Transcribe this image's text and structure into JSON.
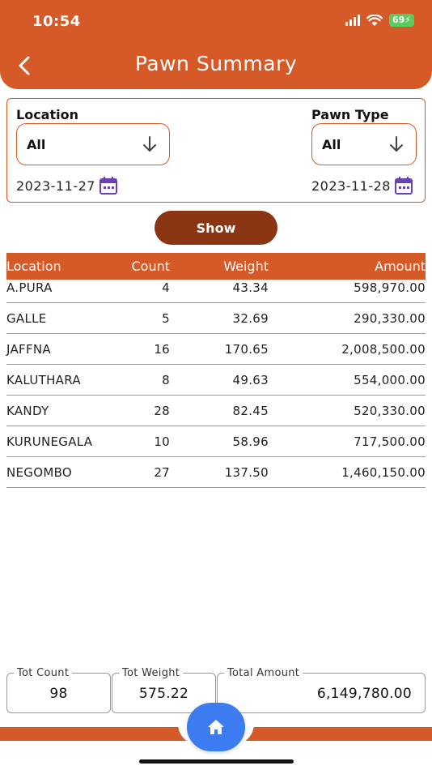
{
  "status_bar": {
    "time": "10:54",
    "battery": "69"
  },
  "header": {
    "title": "Pawn Summary"
  },
  "filters": {
    "location_label": "Location",
    "location_value": "All",
    "pawn_type_label": "Pawn Type",
    "pawn_type_value": "All",
    "from_date": "2023-11-27",
    "to_date": "2023-11-28"
  },
  "show_label": "Show",
  "table": {
    "headers": {
      "location": "Location",
      "count": "Count",
      "weight": "Weight",
      "amount": "Amount"
    },
    "rows": [
      {
        "location": "A.PURA",
        "count": "4",
        "weight": "43.34",
        "amount": "598,970.00"
      },
      {
        "location": "GALLE",
        "count": "5",
        "weight": "32.69",
        "amount": "290,330.00"
      },
      {
        "location": "JAFFNA",
        "count": "16",
        "weight": "170.65",
        "amount": "2,008,500.00"
      },
      {
        "location": "KALUTHARA",
        "count": "8",
        "weight": "49.63",
        "amount": "554,000.00"
      },
      {
        "location": "KANDY",
        "count": "28",
        "weight": "82.45",
        "amount": "520,330.00"
      },
      {
        "location": "KURUNEGALA",
        "count": "10",
        "weight": "58.96",
        "amount": "717,500.00"
      },
      {
        "location": "NEGOMBO",
        "count": "27",
        "weight": "137.50",
        "amount": "1,460,150.00"
      }
    ]
  },
  "summary": {
    "tot_count_label": "Tot Count",
    "tot_count_value": "98",
    "tot_weight_label": "Tot Weight",
    "tot_weight_value": "575.22",
    "total_amount_label": "Total Amount",
    "total_amount_value": "6,149,780.00"
  },
  "colors": {
    "accent": "#d65a28",
    "button": "#8a3612",
    "fab": "#3d7cf0",
    "calendar": "#6a3fb5"
  },
  "icons": [
    "back-arrow-icon",
    "arrow-down-icon",
    "calendar-icon",
    "home-icon",
    "signal-icon",
    "wifi-icon"
  ]
}
